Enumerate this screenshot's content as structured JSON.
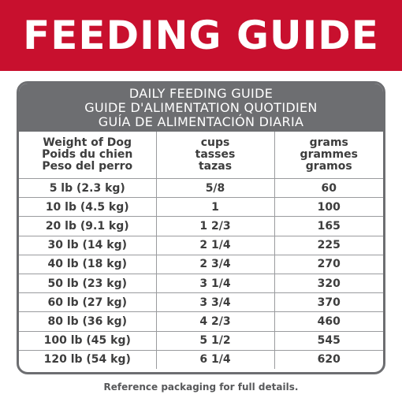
{
  "banner": {
    "title": "FEEDING GUIDE",
    "background": "#c8102e"
  },
  "card": {
    "title_en": "DAILY FEEDING GUIDE",
    "title_fr": "GUIDE D'ALIMENTATION QUOTIDIEN",
    "title_es": "GUÍA DE ALIMENTACIÓN DIARIA",
    "header_color": "#6d6e71"
  },
  "table": {
    "headers": [
      [
        "Weight of Dog",
        "Poids du chien",
        "Peso del perro"
      ],
      [
        "cups",
        "tasses",
        "tazas"
      ],
      [
        "grams",
        "grammes",
        "gramos"
      ]
    ],
    "rows": [
      [
        "5 lb (2.3 kg)",
        "5/8",
        "60"
      ],
      [
        "10 lb (4.5 kg)",
        "1",
        "100"
      ],
      [
        "20 lb (9.1 kg)",
        "1 2/3",
        "165"
      ],
      [
        "30 lb (14 kg)",
        "2 1/4",
        "225"
      ],
      [
        "40 lb (18 kg)",
        "2 3/4",
        "270"
      ],
      [
        "50 lb (23 kg)",
        "3 1/4",
        "320"
      ],
      [
        "60 lb (27 kg)",
        "3 3/4",
        "370"
      ],
      [
        "80 lb (36 kg)",
        "4 2/3",
        "460"
      ],
      [
        "100 lb (45 kg)",
        "5 1/2",
        "545"
      ],
      [
        "120 lb (54 kg)",
        "6 1/4",
        "620"
      ]
    ]
  },
  "footnote": "Reference packaging for full details."
}
